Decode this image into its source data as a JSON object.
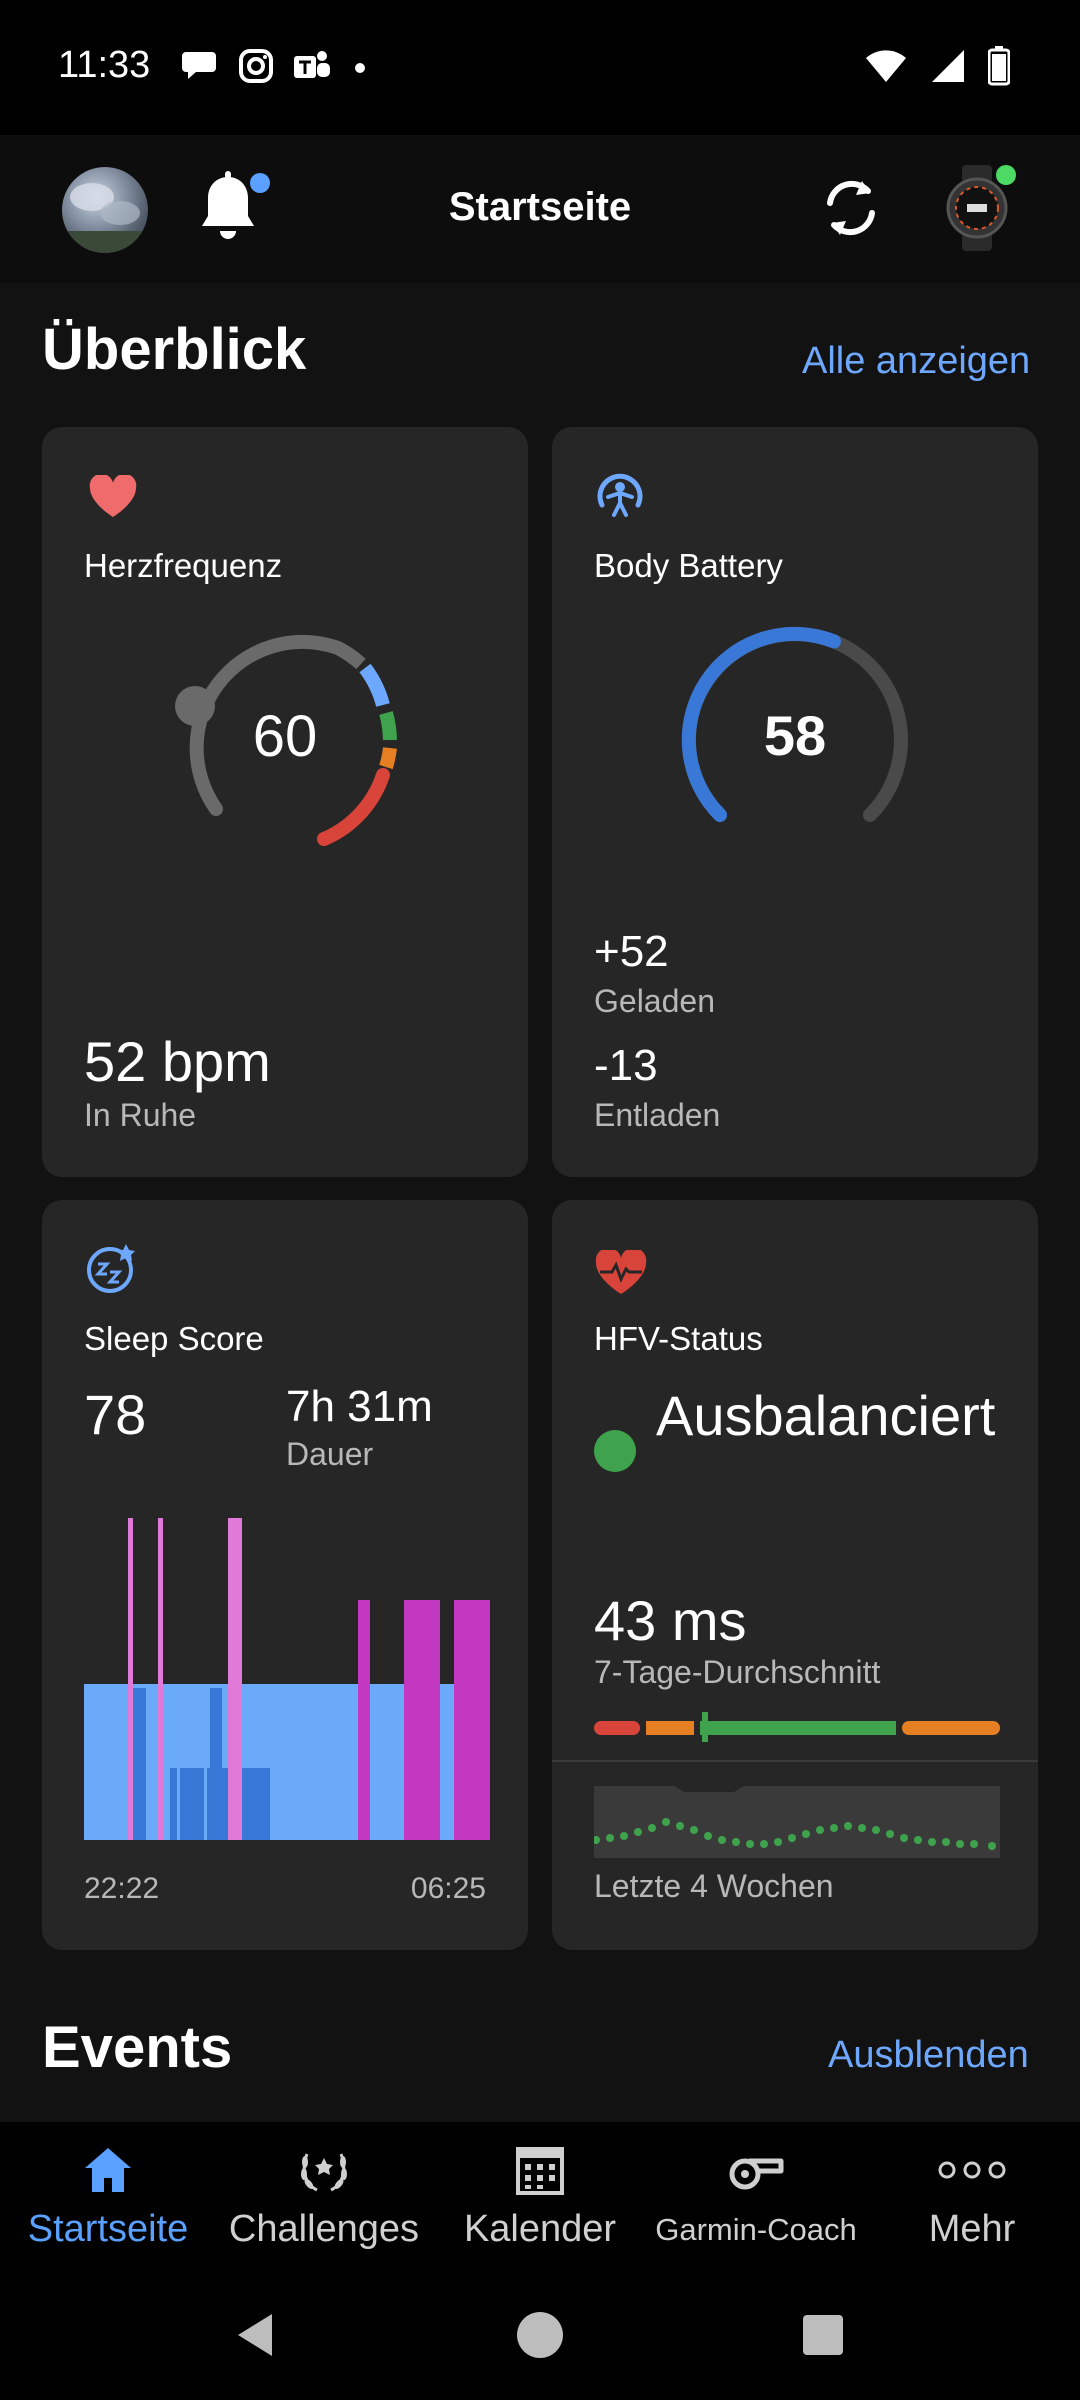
{
  "status_bar": {
    "time": "11:33"
  },
  "header": {
    "title": "Startseite"
  },
  "overview": {
    "title": "Überblick",
    "link": "Alle anzeigen"
  },
  "heart": {
    "label": "Herzfrequenz",
    "value": "60",
    "resting_value": "52 bpm",
    "resting_label": "In Ruhe",
    "color": "#f06b6b"
  },
  "body_battery": {
    "label": "Body Battery",
    "value": "58",
    "level": 58,
    "charged_value": "+52",
    "charged_label": "Geladen",
    "drained_value": "-13",
    "drained_label": "Entladen",
    "color": "#3a78d8"
  },
  "sleep": {
    "label": "Sleep Score",
    "score": "78",
    "duration_value": "7h 31m",
    "duration_label": "Dauer",
    "start_time": "22:22",
    "end_time": "06:25"
  },
  "hrv": {
    "label": "HFV-Status",
    "status": "Ausbalanciert",
    "value": "43 ms",
    "value_label": "7-Tage-Durchschnitt",
    "trend_label": "Letzte 4 Wochen",
    "status_color": "#3fa34d"
  },
  "events": {
    "title": "Events",
    "link": "Ausblenden"
  },
  "bottom_nav": {
    "items": [
      {
        "label": "Startseite",
        "icon": "home-icon",
        "active": true
      },
      {
        "label": "Challenges",
        "icon": "laurel-icon",
        "active": false
      },
      {
        "label": "Kalender",
        "icon": "calendar-icon",
        "active": false
      },
      {
        "label": "Garmin-Coach",
        "icon": "whistle-icon",
        "active": false
      },
      {
        "label": "Mehr",
        "icon": "more-icon",
        "active": false
      }
    ]
  }
}
